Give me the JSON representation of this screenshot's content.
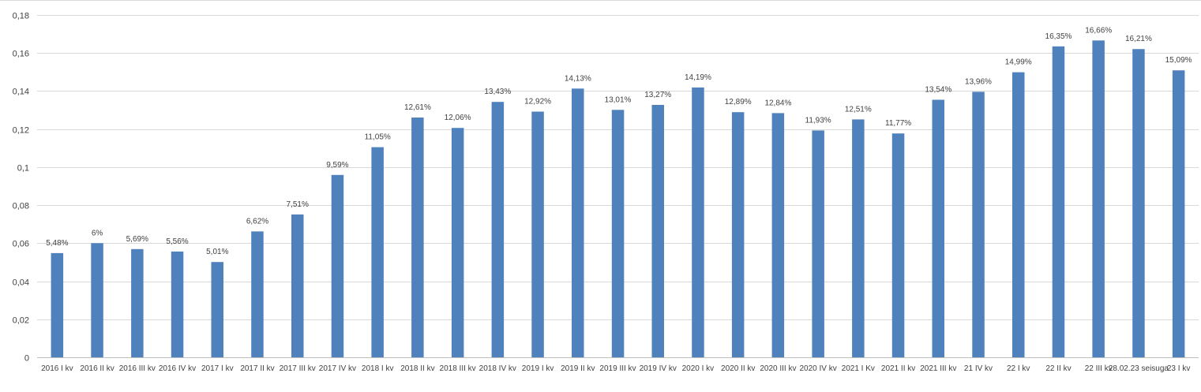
{
  "chart_data": {
    "type": "bar",
    "title": "",
    "xlabel": "",
    "ylabel": "",
    "ylim": [
      0,
      0.18
    ],
    "grid": true,
    "legend": "none",
    "bar_color": "#4f81bd",
    "yticks": [
      "0",
      "0,02",
      "0,04",
      "0,06",
      "0,08",
      "0,1",
      "0,12",
      "0,14",
      "0,16",
      "0,18"
    ],
    "ytick_values": [
      0,
      0.02,
      0.04,
      0.06,
      0.08,
      0.1,
      0.12,
      0.14,
      0.16,
      0.18
    ],
    "categories": [
      "2016 I kv",
      "2016 II kv",
      "2016 III kv",
      "2016 IV kv",
      "2017 I kv",
      "2017 II kv",
      "2017 III kv",
      "2017 IV kv",
      "2018 I kv",
      "2018 II kv",
      "2018 III kv",
      "2018 IV kv",
      "2019 I kv",
      "2019 II kv",
      "2019 III kv",
      "2019 IV kv",
      "2020 I kv",
      "2020 II kv",
      "2020 III kv",
      "2020 IV kv",
      "2021 I Kv",
      "2021 II kv",
      "2021 III kv",
      "21 IV kv",
      "22 I kv",
      "22 II kv",
      "22 III kv",
      "28.02.23 seisuga",
      "23 I kv"
    ],
    "values": [
      0.0548,
      0.06,
      0.0569,
      0.0556,
      0.0501,
      0.0662,
      0.0751,
      0.0959,
      0.1105,
      0.1261,
      0.1206,
      0.1343,
      0.1292,
      0.1413,
      0.1301,
      0.1327,
      0.1419,
      0.1289,
      0.1284,
      0.1193,
      0.1251,
      0.1177,
      0.1354,
      0.1396,
      0.1499,
      0.1635,
      0.1666,
      0.1621,
      0.1509
    ],
    "data_labels": [
      "5,48%",
      "6%",
      "5,69%",
      "5,56%",
      "5,01%",
      "6,62%",
      "7,51%",
      "9,59%",
      "11,05%",
      "12,61%",
      "12,06%",
      "13,43%",
      "12,92%",
      "14,13%",
      "13,01%",
      "13,27%",
      "14,19%",
      "12,89%",
      "12,84%",
      "11,93%",
      "12,51%",
      "11,77%",
      "13,54%",
      "13,96%",
      "14,99%",
      "16,35%",
      "16,66%",
      "16,21%",
      "15,09%"
    ]
  }
}
